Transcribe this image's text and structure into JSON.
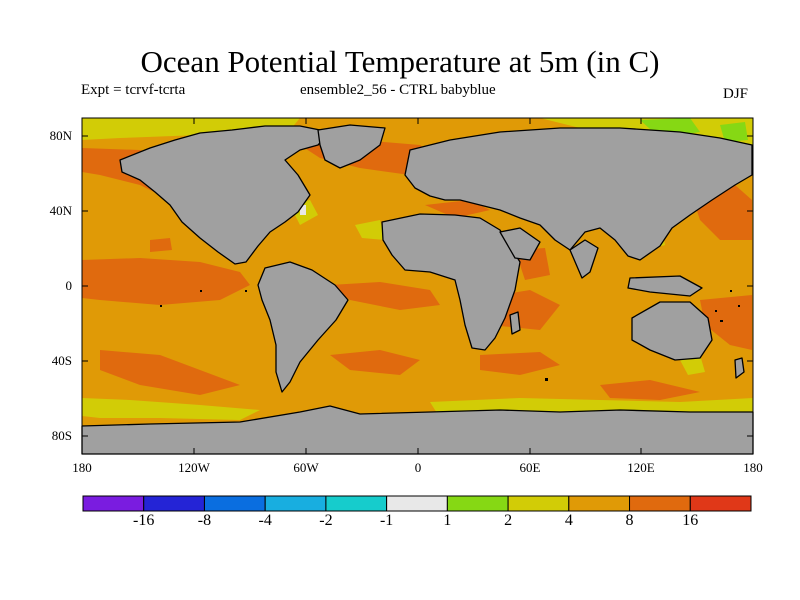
{
  "header": {
    "title": "Ocean Potential Temperature at 5m (in C)",
    "left_label": "Expt = tcrvf-tcrta",
    "center_label": "ensemble2_56 - CTRL babyblue",
    "right_label": "DJF"
  },
  "axes": {
    "y_ticks": [
      "80N",
      "40N",
      "0",
      "40S",
      "80S"
    ],
    "x_ticks": [
      "180",
      "120W",
      "60W",
      "0",
      "60E",
      "120E",
      "180"
    ]
  },
  "colorbar": {
    "colors": [
      "#7a1ce0",
      "#2424d6",
      "#0a6ee0",
      "#18aee0",
      "#16cccc",
      "#e8e8e8",
      "#86d814",
      "#d2cc06",
      "#e09a06",
      "#e06a0e",
      "#e03818"
    ],
    "labels": [
      "-16",
      "-8",
      "-4",
      "-2",
      "-1",
      "1",
      "2",
      "4",
      "8",
      "16"
    ]
  },
  "map_colors": {
    "land": "#a0a0a0",
    "ocean_dominant": "#e09a06",
    "warm": "#e06a0e",
    "cool": "#d2cc06",
    "coast": "#000000"
  }
}
